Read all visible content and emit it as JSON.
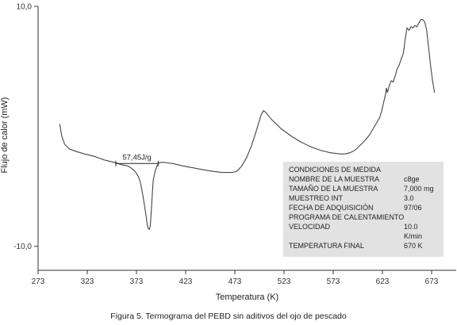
{
  "caption": "Figura 5. Termograma del PEBD sin aditivos del ojo de pescado",
  "chart_data": {
    "type": "line",
    "title": "",
    "xlabel": "Temperatura (K)",
    "ylabel": "Flujo de calor (mW)",
    "xlim": [
      273,
      698
    ],
    "ylim": [
      -12,
      10
    ],
    "xticks": [
      273,
      323,
      373,
      423,
      473,
      523,
      573,
      623,
      673
    ],
    "yticks": [
      10,
      -10
    ],
    "ytick_labels": [
      "10,0",
      "-10,0"
    ],
    "grid": false,
    "annotation": {
      "text": "57,45J/g",
      "x_start": 352,
      "x_end": 395,
      "y": -3.1
    },
    "series": [
      {
        "x": [
          295,
          297,
          300,
          305,
          312,
          320,
          330,
          340,
          350,
          358,
          364,
          368,
          372,
          375,
          377,
          379,
          381,
          383,
          384,
          385,
          386,
          387,
          388,
          389,
          390,
          392,
          394,
          395,
          396,
          398,
          400,
          405,
          410,
          420,
          430,
          440,
          450,
          460,
          470,
          475,
          480,
          485,
          490,
          494,
          498,
          500,
          502,
          504,
          506,
          508,
          510,
          515,
          520,
          530,
          540,
          550,
          560,
          570,
          580,
          585,
          590,
          595,
          600,
          605,
          610,
          615,
          620,
          622,
          624,
          626,
          627,
          628,
          630,
          632,
          634,
          636,
          638,
          640,
          642,
          644,
          645,
          646,
          647,
          648,
          650,
          652,
          654,
          656,
          658,
          660,
          662,
          664,
          666,
          668,
          670,
          672,
          674,
          676
        ],
        "y": [
          0.2,
          -0.8,
          -1.5,
          -1.9,
          -2.1,
          -2.3,
          -2.5,
          -2.8,
          -3.0,
          -3.2,
          -3.3,
          -3.5,
          -3.8,
          -4.2,
          -4.7,
          -5.5,
          -6.5,
          -7.6,
          -8.2,
          -8.5,
          -8.6,
          -8.3,
          -7.2,
          -5.8,
          -4.5,
          -3.7,
          -3.3,
          -3.15,
          -3.05,
          -3.0,
          -3.0,
          -3.05,
          -3.1,
          -3.3,
          -3.45,
          -3.6,
          -3.75,
          -3.85,
          -3.85,
          -3.75,
          -3.3,
          -2.6,
          -1.6,
          -0.6,
          0.5,
          1.0,
          1.3,
          1.2,
          1.0,
          0.8,
          0.6,
          0.2,
          -0.2,
          -0.8,
          -1.3,
          -1.7,
          -2.0,
          -2.2,
          -2.3,
          -2.3,
          -2.2,
          -2.0,
          -1.6,
          -1.2,
          -0.7,
          0.0,
          0.7,
          1.2,
          1.9,
          2.6,
          3.2,
          2.8,
          3.4,
          3.8,
          3.7,
          4.2,
          4.8,
          5.1,
          5.6,
          6.0,
          6.5,
          7.2,
          7.7,
          8.2,
          8.0,
          8.3,
          8.2,
          8.4,
          8.3,
          8.6,
          8.9,
          8.9,
          8.7,
          8.0,
          6.5,
          5.0,
          3.8,
          2.8
        ]
      }
    ],
    "info_box": {
      "header": "CONDICIONES DE MEDIDA",
      "rows": [
        {
          "label": "NOMBRE DE LA MUESTRA",
          "value": "c8ge"
        },
        {
          "label": "TAMAÑO DE LA MUESTRA",
          "value": "7,000 mg"
        },
        {
          "label": "MUESTREO INT",
          "value": "3.0"
        },
        {
          "label": "FECHA DE ADQUISICIÓN",
          "value": "97/06"
        },
        {
          "label": "PROGRAMA DE CALENTAMIENTO",
          "value": ""
        },
        {
          "label": "VELOCIDAD",
          "value": "10.0"
        },
        {
          "label": "",
          "value": "K/min"
        },
        {
          "label": "TEMPERATURA FINAL",
          "value": "670 K"
        }
      ]
    }
  }
}
